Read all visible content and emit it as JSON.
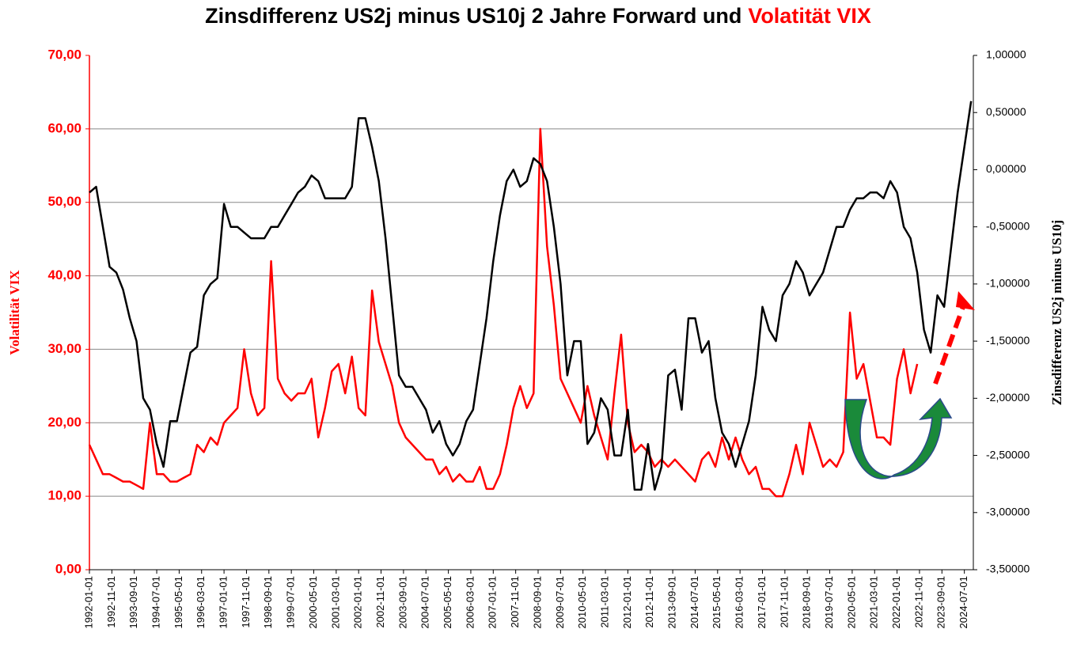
{
  "chart_data": {
    "type": "line",
    "title": "Zinsdifferenz US2j minus US10j 2 Jahre Forward und",
    "title_highlight": "Volatität VIX",
    "ylabel": "Volatilität VIX",
    "y2label": "Zinsdifferenz US2j minus US10j",
    "grid": true,
    "xlim": [
      "1992-01-01",
      "2024-11-01"
    ],
    "ylim": [
      0,
      70
    ],
    "yticks": [
      {
        "value": 0,
        "label": "0,00"
      },
      {
        "value": 10,
        "label": "10,00"
      },
      {
        "value": 20,
        "label": "20,00"
      },
      {
        "value": 30,
        "label": "30,00"
      },
      {
        "value": 40,
        "label": "40,00"
      },
      {
        "value": 50,
        "label": "50,00"
      },
      {
        "value": 60,
        "label": "60,00"
      },
      {
        "value": 70,
        "label": "70,00"
      }
    ],
    "y2lim": [
      -3.5,
      1.0
    ],
    "y2ticks": [
      {
        "value": -3.5,
        "label": "-3,50000"
      },
      {
        "value": -3.0,
        "label": "-3,00000"
      },
      {
        "value": -2.5,
        "label": "-2,50000"
      },
      {
        "value": -2.0,
        "label": "-2,00000"
      },
      {
        "value": -1.5,
        "label": "-1,50000"
      },
      {
        "value": -1.0,
        "label": "-1,00000"
      },
      {
        "value": -0.5,
        "label": "-0,50000"
      },
      {
        "value": 0,
        "label": "0,00000"
      },
      {
        "value": 0.5,
        "label": "0,50000"
      },
      {
        "value": 1.0,
        "label": "1,00000"
      }
    ],
    "xticks": [
      "1992-01-01",
      "1992-11-01",
      "1993-09-01",
      "1994-07-01",
      "1995-05-01",
      "1996-03-01",
      "1997-01-01",
      "1997-11-01",
      "1998-09-01",
      "1999-07-01",
      "2000-05-01",
      "2001-03-01",
      "2002-01-01",
      "2002-11-01",
      "2003-09-01",
      "2004-07-01",
      "2005-05-01",
      "2006-03-01",
      "2007-01-01",
      "2007-11-01",
      "2008-09-01",
      "2009-07-01",
      "2010-05-01",
      "2011-03-01",
      "2012-01-01",
      "2012-11-01",
      "2013-09-01",
      "2014-07-01",
      "2015-05-01",
      "2016-03-01",
      "2017-01-01",
      "2017-11-01",
      "2018-09-01",
      "2019-07-01",
      "2020-05-01",
      "2021-03-01",
      "2022-01-01",
      "2022-11-01",
      "2023-09-01",
      "2024-07-01"
    ],
    "x": [
      "1992-01-01",
      "1992-04-01",
      "1992-07-01",
      "1992-10-01",
      "1993-01-01",
      "1993-04-01",
      "1993-07-01",
      "1993-10-01",
      "1994-01-01",
      "1994-04-01",
      "1994-07-01",
      "1994-10-01",
      "1995-01-01",
      "1995-04-01",
      "1995-07-01",
      "1995-10-01",
      "1996-01-01",
      "1996-04-01",
      "1996-07-01",
      "1996-10-01",
      "1997-01-01",
      "1997-04-01",
      "1997-07-01",
      "1997-10-01",
      "1998-01-01",
      "1998-04-01",
      "1998-07-01",
      "1998-10-01",
      "1999-01-01",
      "1999-04-01",
      "1999-07-01",
      "1999-10-01",
      "2000-01-01",
      "2000-04-01",
      "2000-07-01",
      "2000-10-01",
      "2001-01-01",
      "2001-04-01",
      "2001-07-01",
      "2001-10-01",
      "2002-01-01",
      "2002-04-01",
      "2002-07-01",
      "2002-10-01",
      "2003-01-01",
      "2003-04-01",
      "2003-07-01",
      "2003-10-01",
      "2004-01-01",
      "2004-04-01",
      "2004-07-01",
      "2004-10-01",
      "2005-01-01",
      "2005-04-01",
      "2005-07-01",
      "2005-10-01",
      "2006-01-01",
      "2006-04-01",
      "2006-07-01",
      "2006-10-01",
      "2007-01-01",
      "2007-04-01",
      "2007-07-01",
      "2007-10-01",
      "2008-01-01",
      "2008-04-01",
      "2008-07-01",
      "2008-10-01",
      "2009-01-01",
      "2009-04-01",
      "2009-07-01",
      "2009-10-01",
      "2010-01-01",
      "2010-04-01",
      "2010-07-01",
      "2010-10-01",
      "2011-01-01",
      "2011-04-01",
      "2011-07-01",
      "2011-10-01",
      "2012-01-01",
      "2012-04-01",
      "2012-07-01",
      "2012-10-01",
      "2013-01-01",
      "2013-04-01",
      "2013-07-01",
      "2013-10-01",
      "2014-01-01",
      "2014-04-01",
      "2014-07-01",
      "2014-10-01",
      "2015-01-01",
      "2015-04-01",
      "2015-07-01",
      "2015-10-01",
      "2016-01-01",
      "2016-04-01",
      "2016-07-01",
      "2016-10-01",
      "2017-01-01",
      "2017-04-01",
      "2017-07-01",
      "2017-10-01",
      "2018-01-01",
      "2018-04-01",
      "2018-07-01",
      "2018-10-01",
      "2019-01-01",
      "2019-04-01",
      "2019-07-01",
      "2019-10-01",
      "2020-01-01",
      "2020-04-01",
      "2020-07-01",
      "2020-10-01",
      "2021-01-01",
      "2021-04-01",
      "2021-07-01",
      "2021-10-01",
      "2022-01-01",
      "2022-04-01",
      "2022-07-01",
      "2022-10-01",
      "2023-01-01",
      "2023-04-01",
      "2023-07-01",
      "2023-10-01",
      "2024-01-01",
      "2024-04-01",
      "2024-07-01",
      "2024-10-01"
    ],
    "series": [
      {
        "color": "#ff0000",
        "axis": "y",
        "values": [
          17,
          15,
          13,
          13,
          12.5,
          12,
          12,
          11.5,
          11,
          20,
          13,
          13,
          12,
          12,
          12.5,
          13,
          17,
          16,
          18,
          17,
          20,
          21,
          22,
          30,
          24,
          21,
          22,
          42,
          26,
          24,
          23,
          24,
          24,
          26,
          18,
          22,
          27,
          28,
          24,
          29,
          22,
          21,
          38,
          31,
          28,
          25,
          20,
          18,
          17,
          16,
          15,
          15,
          13,
          14,
          12,
          13,
          12,
          12,
          14,
          11,
          11,
          13,
          17,
          22,
          25,
          22,
          24,
          60,
          44,
          36,
          26,
          24,
          22,
          20,
          25,
          21,
          18,
          15,
          24,
          32,
          20,
          16,
          17,
          16,
          14,
          15,
          14,
          15,
          14,
          13,
          12,
          15,
          16,
          14,
          18,
          15,
          18,
          15,
          13,
          14,
          11,
          11,
          10,
          10,
          13,
          17,
          13,
          20,
          17,
          14,
          15,
          14,
          16,
          35,
          26,
          28,
          23,
          18,
          18,
          17,
          26,
          30,
          24,
          28,
          null,
          null,
          null,
          null,
          null,
          null,
          null,
          null
        ]
      },
      {
        "color": "#000000",
        "axis": "y2",
        "values": [
          -0.2,
          -0.15,
          -0.5,
          -0.85,
          -0.9,
          -1.05,
          -1.3,
          -1.5,
          -2.0,
          -2.1,
          -2.4,
          -2.6,
          -2.2,
          -2.2,
          -1.9,
          -1.6,
          -1.55,
          -1.1,
          -1.0,
          -0.95,
          -0.3,
          -0.5,
          -0.5,
          -0.55,
          -0.6,
          -0.6,
          -0.6,
          -0.5,
          -0.5,
          -0.4,
          -0.3,
          -0.2,
          -0.15,
          -0.05,
          -0.1,
          -0.25,
          -0.25,
          -0.25,
          -0.25,
          -0.15,
          0.45,
          0.45,
          0.2,
          -0.1,
          -0.6,
          -1.2,
          -1.8,
          -1.9,
          -1.9,
          -2.0,
          -2.1,
          -2.3,
          -2.2,
          -2.4,
          -2.5,
          -2.4,
          -2.2,
          -2.1,
          -1.7,
          -1.3,
          -0.8,
          -0.4,
          -0.1,
          0.0,
          -0.15,
          -0.1,
          0.1,
          0.05,
          -0.1,
          -0.5,
          -1.0,
          -1.8,
          -1.5,
          -1.5,
          -2.4,
          -2.3,
          -2.0,
          -2.1,
          -2.5,
          -2.5,
          -2.1,
          -2.8,
          -2.8,
          -2.4,
          -2.8,
          -2.6,
          -1.8,
          -1.75,
          -2.1,
          -1.3,
          -1.3,
          -1.6,
          -1.5,
          -2.0,
          -2.3,
          -2.4,
          -2.6,
          -2.4,
          -2.2,
          -1.8,
          -1.2,
          -1.4,
          -1.5,
          -1.1,
          -1.0,
          -0.8,
          -0.9,
          -1.1,
          -1.0,
          -0.9,
          -0.7,
          -0.5,
          -0.5,
          -0.35,
          -0.25,
          -0.25,
          -0.2,
          -0.2,
          -0.25,
          -0.1,
          -0.2,
          -0.5,
          -0.6,
          -0.9,
          -1.4,
          -1.6,
          -1.1,
          -1.2,
          -0.7,
          -0.2,
          0.2,
          0.6
        ]
      }
    ]
  }
}
